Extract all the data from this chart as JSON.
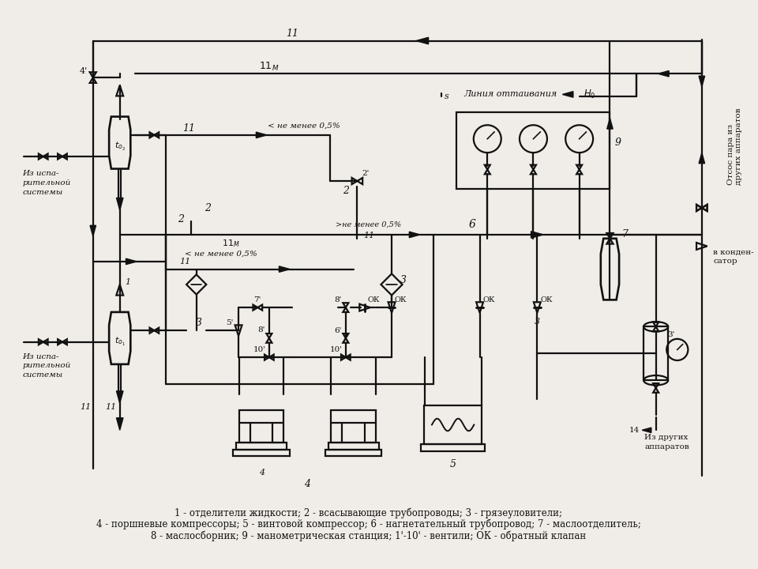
{
  "bg": "#f0ede8",
  "lc": "#111111",
  "legend": [
    "1 - отделители жидкости; 2 - всасывающие трубопроводы; 3 - грязеуловители;",
    "4 - поршневые компрессоры; 5 - винтовой компрессор; 6 - нагнетательный трубопровод; 7 - маслоотделитель;",
    "8 - маслосборник; 9 - манометрическая станция; 1'-10' - вентили; ОК - обратный клапан"
  ]
}
